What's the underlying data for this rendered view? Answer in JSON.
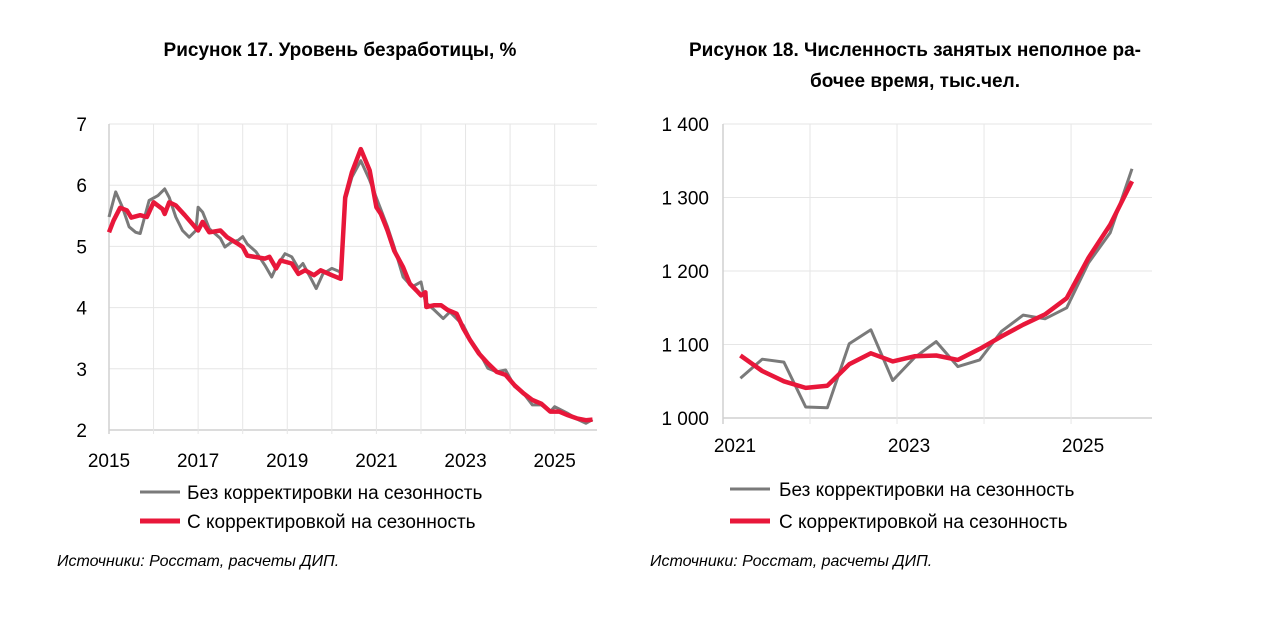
{
  "colors": {
    "not_adjusted": "#7a7a7a",
    "adjusted": "#e8173a"
  },
  "chart_data": [
    {
      "type": "line",
      "title": "Рисунок 17. Уровень безработицы, %",
      "xlabel": "",
      "ylabel": "",
      "xlim": [
        2015,
        2025.95
      ],
      "ylim": [
        2,
        7
      ],
      "x_ticks": [
        "2015",
        "2017",
        "2019",
        "2021",
        "2023",
        "2025"
      ],
      "y_ticks": [
        "2",
        "3",
        "4",
        "5",
        "6",
        "7"
      ],
      "grid": true,
      "legend_position": "bottom",
      "source": "Источники: Росстат, расчеты ДИП.",
      "series": [
        {
          "name": "Без корректировки на сезонность",
          "color": "#7a7a7a",
          "x": [
            2015.0,
            2015.15,
            2015.3,
            2015.45,
            2015.6,
            2015.7,
            2015.9,
            2016.1,
            2016.25,
            2016.35,
            2016.5,
            2016.65,
            2016.8,
            2016.95,
            2017.0,
            2017.1,
            2017.25,
            2017.5,
            2017.6,
            2017.75,
            2017.9,
            2018.0,
            2018.1,
            2018.3,
            2018.5,
            2018.65,
            2018.75,
            2018.95,
            2019.1,
            2019.25,
            2019.35,
            2019.55,
            2019.65,
            2019.8,
            2020.0,
            2020.2,
            2020.3,
            2020.45,
            2020.65,
            2020.85,
            2021.05,
            2021.25,
            2021.4,
            2021.6,
            2021.8,
            2022.0,
            2022.1,
            2022.3,
            2022.5,
            2022.65,
            2022.95,
            2023.1,
            2023.3,
            2023.5,
            2023.7,
            2023.9,
            2024.1,
            2024.3,
            2024.5,
            2024.7,
            2024.9,
            2025.0,
            2025.3,
            2025.55,
            2025.7,
            2025.85
          ],
          "y": [
            5.48,
            5.89,
            5.64,
            5.32,
            5.23,
            5.21,
            5.75,
            5.83,
            5.94,
            5.8,
            5.48,
            5.26,
            5.15,
            5.26,
            5.64,
            5.56,
            5.29,
            5.13,
            4.99,
            5.07,
            5.1,
            5.16,
            5.04,
            4.91,
            4.69,
            4.5,
            4.66,
            4.88,
            4.83,
            4.64,
            4.72,
            4.45,
            4.31,
            4.55,
            4.64,
            4.58,
            5.75,
            6.13,
            6.4,
            6.08,
            5.7,
            5.32,
            4.99,
            4.5,
            4.34,
            4.42,
            4.09,
            3.96,
            3.82,
            3.93,
            3.71,
            3.49,
            3.28,
            3.01,
            2.95,
            2.98,
            2.71,
            2.6,
            2.41,
            2.41,
            2.3,
            2.38,
            2.27,
            2.16,
            2.11,
            2.17
          ]
        },
        {
          "name": "С корректировкой на сезонность",
          "color": "#e8173a",
          "x": [
            2015.0,
            2015.1,
            2015.25,
            2015.4,
            2015.5,
            2015.7,
            2015.85,
            2016.0,
            2016.2,
            2016.25,
            2016.35,
            2016.5,
            2016.7,
            2017.0,
            2017.1,
            2017.25,
            2017.5,
            2017.65,
            2017.9,
            2018.0,
            2018.1,
            2018.5,
            2018.6,
            2018.75,
            2018.85,
            2019.1,
            2019.25,
            2019.4,
            2019.6,
            2019.75,
            2020.0,
            2020.2,
            2020.3,
            2020.45,
            2020.65,
            2020.85,
            2021.0,
            2021.1,
            2021.25,
            2021.4,
            2021.6,
            2021.75,
            2021.9,
            2022.0,
            2022.1,
            2022.12,
            2022.3,
            2022.45,
            2022.6,
            2022.8,
            2022.95,
            2023.1,
            2023.3,
            2023.5,
            2023.7,
            2023.9,
            2024.1,
            2024.3,
            2024.5,
            2024.7,
            2024.9,
            2025.1,
            2025.3,
            2025.5,
            2025.7,
            2025.85
          ],
          "y": [
            5.23,
            5.42,
            5.63,
            5.59,
            5.47,
            5.51,
            5.48,
            5.72,
            5.61,
            5.53,
            5.72,
            5.67,
            5.51,
            5.26,
            5.4,
            5.23,
            5.26,
            5.15,
            5.04,
            4.99,
            4.85,
            4.8,
            4.83,
            4.64,
            4.77,
            4.72,
            4.55,
            4.61,
            4.53,
            4.61,
            4.53,
            4.47,
            5.8,
            6.21,
            6.59,
            6.24,
            5.64,
            5.53,
            5.26,
            4.93,
            4.66,
            4.39,
            4.28,
            4.2,
            4.25,
            4.01,
            4.04,
            4.04,
            3.96,
            3.9,
            3.66,
            3.47,
            3.25,
            3.09,
            2.95,
            2.9,
            2.73,
            2.6,
            2.49,
            2.43,
            2.3,
            2.3,
            2.24,
            2.19,
            2.16,
            2.17
          ]
        }
      ]
    },
    {
      "type": "line",
      "title_lines": [
        "Рисунок 18. Численность занятых неполное ра-",
        "бочее время, тыс.чел."
      ],
      "xlabel": "",
      "ylabel": "",
      "xlim": [
        2021,
        2025.93
      ],
      "ylim": [
        1000,
        1400
      ],
      "x_ticks": [
        "2021",
        "2023",
        "2025"
      ],
      "x_grid_years": [
        2021,
        2022,
        2023,
        2024,
        2025
      ],
      "y_ticks": [
        "1 000",
        "1 100",
        "1 200",
        "1 300",
        "1 400"
      ],
      "grid": true,
      "legend_position": "bottom",
      "source": "Источники: Росстат, расчеты ДИП.",
      "categories": [
        "2021-Q1",
        "2021-Q2",
        "2021-Q3",
        "2021-Q4",
        "2022-Q1",
        "2022-Q2",
        "2022-Q3",
        "2022-Q4",
        "2023-Q1",
        "2023-Q2",
        "2023-Q3",
        "2023-Q4",
        "2024-Q1",
        "2024-Q2",
        "2024-Q3",
        "2024-Q4",
        "2025-Q1",
        "2025-Q2",
        "2025-Q3"
      ],
      "series": [
        {
          "name": "Без корректировки на сезонность",
          "color": "#7a7a7a",
          "values": [
            1054,
            1080,
            1076,
            1015,
            1014,
            1101,
            1120,
            1051,
            1082,
            1104,
            1070,
            1079,
            1118,
            1140,
            1135,
            1150,
            1211,
            1252,
            1339
          ]
        },
        {
          "name": "С корректировкой на сезонность",
          "color": "#e8173a",
          "values": [
            1085,
            1064,
            1050,
            1041,
            1044,
            1073,
            1088,
            1077,
            1084,
            1085,
            1079,
            1094,
            1111,
            1127,
            1141,
            1163,
            1218,
            1263,
            1322
          ]
        }
      ]
    }
  ]
}
